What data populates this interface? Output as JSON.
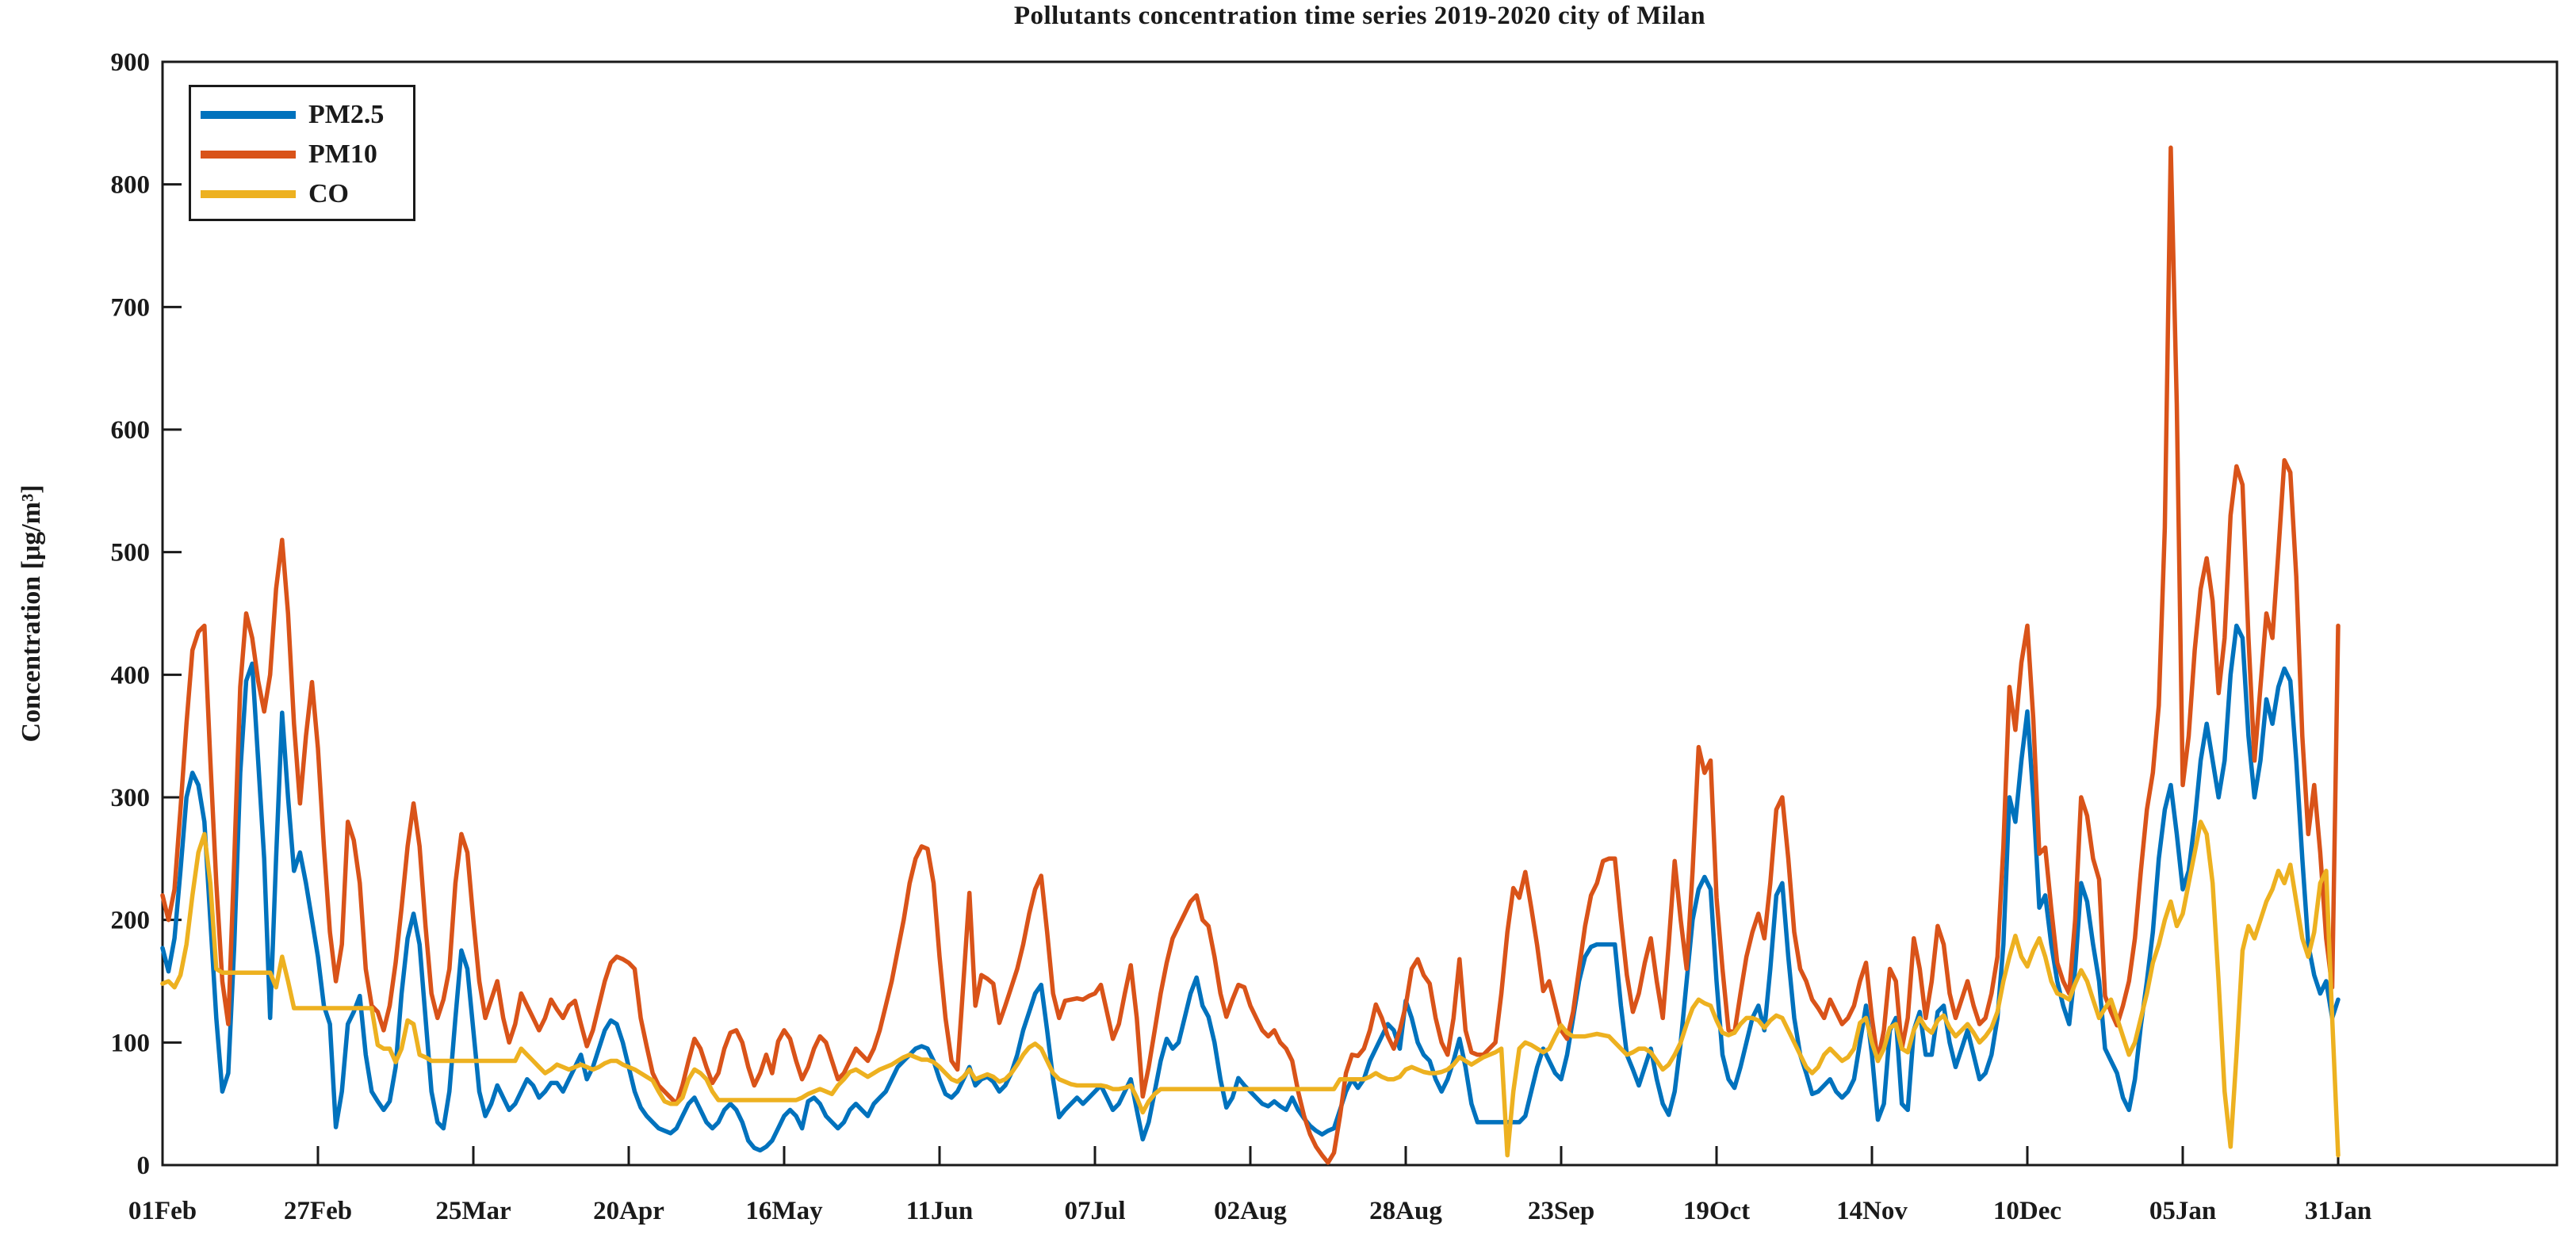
{
  "page": {
    "background": "#ffffff"
  },
  "chart_data": {
    "type": "line",
    "title": "Pollutants concentration time series 2019-2020 city of Milan",
    "xlabel": "",
    "ylabel": "Concentration [μg/m³]",
    "ylim": [
      0,
      900
    ],
    "y_ticks": [
      0,
      100,
      200,
      300,
      400,
      500,
      600,
      700,
      800,
      900
    ],
    "x_tick_labels": [
      "01Feb",
      "27Feb",
      "25Mar",
      "20Apr",
      "16May",
      "11Jun",
      "07Jul",
      "02Aug",
      "28Aug",
      "23Sep",
      "19Oct",
      "14Nov",
      "10Dec",
      "05Jan",
      "31Jan"
    ],
    "x_tick_days": [
      0,
      26,
      52,
      78,
      104,
      130,
      156,
      182,
      208,
      234,
      260,
      286,
      312,
      338,
      364
    ],
    "x_unit": "daily values, day 0 = 01 Feb 2019, day 364 = 31 Jan 2020",
    "grid": false,
    "legend_position": "top-left",
    "axis_color": "#1a1a1a",
    "series": [
      {
        "name": "PM2.5",
        "color": "#0072BD",
        "values": [
          177,
          158,
          185,
          240,
          300,
          320,
          310,
          280,
          200,
          120,
          60,
          75,
          180,
          320,
          395,
          409,
          330,
          250,
          120,
          250,
          369,
          300,
          240,
          255,
          230,
          200,
          170,
          130,
          115,
          31,
          60,
          115,
          125,
          138,
          90,
          60,
          52,
          45,
          52,
          80,
          140,
          185,
          205,
          180,
          120,
          60,
          35,
          30,
          60,
          120,
          175,
          160,
          110,
          60,
          40,
          50,
          65,
          55,
          45,
          50,
          60,
          70,
          65,
          55,
          60,
          67,
          67,
          60,
          70,
          80,
          90,
          70,
          80,
          95,
          110,
          118,
          115,
          100,
          80,
          60,
          47,
          40,
          35,
          30,
          28,
          26,
          30,
          40,
          50,
          55,
          45,
          35,
          30,
          35,
          45,
          50,
          45,
          35,
          20,
          14,
          12,
          15,
          20,
          30,
          40,
          45,
          40,
          30,
          52,
          55,
          50,
          40,
          35,
          30,
          35,
          45,
          50,
          45,
          40,
          50,
          55,
          60,
          70,
          80,
          85,
          90,
          95,
          97,
          95,
          85,
          70,
          58,
          55,
          60,
          70,
          80,
          65,
          70,
          72,
          68,
          60,
          65,
          75,
          90,
          110,
          125,
          140,
          147,
          110,
          70,
          39,
          45,
          50,
          55,
          50,
          55,
          60,
          65,
          55,
          45,
          50,
          60,
          70,
          45,
          21,
          35,
          60,
          85,
          103,
          95,
          100,
          120,
          140,
          153,
          130,
          121,
          100,
          70,
          47,
          55,
          71,
          65,
          60,
          55,
          50,
          48,
          52,
          48,
          45,
          55,
          45,
          38,
          32,
          28,
          25,
          28,
          30,
          45,
          60,
          70,
          63,
          70,
          85,
          95,
          105,
          115,
          110,
          95,
          134,
          120,
          100,
          90,
          85,
          70,
          60,
          70,
          85,
          103,
          80,
          50,
          35,
          35,
          35,
          35,
          35,
          35,
          35,
          35,
          40,
          60,
          80,
          95,
          85,
          75,
          70,
          90,
          120,
          150,
          170,
          178,
          180,
          180,
          180,
          180,
          130,
          90,
          78,
          65,
          80,
          95,
          70,
          50,
          41,
          60,
          100,
          150,
          200,
          225,
          235,
          225,
          150,
          90,
          70,
          63,
          80,
          100,
          120,
          130,
          110,
          160,
          220,
          230,
          170,
          120,
          90,
          75,
          58,
          60,
          65,
          70,
          60,
          55,
          60,
          70,
          100,
          130,
          90,
          37,
          50,
          110,
          120,
          50,
          45,
          110,
          125,
          90,
          90,
          125,
          130,
          100,
          80,
          95,
          110,
          90,
          70,
          75,
          90,
          120,
          180,
          300,
          280,
          330,
          370,
          300,
          210,
          220,
          180,
          150,
          130,
          115,
          160,
          230,
          215,
          180,
          150,
          95,
          85,
          75,
          55,
          45,
          70,
          114,
          150,
          190,
          250,
          290,
          310,
          270,
          225,
          240,
          280,
          330,
          360,
          330,
          300,
          330,
          400,
          440,
          430,
          350,
          300,
          330,
          380,
          360,
          390,
          405,
          395,
          330,
          250,
          180,
          155,
          140,
          150,
          120,
          135
        ]
      },
      {
        "name": "PM10",
        "color": "#D95319",
        "values": [
          220,
          200,
          225,
          290,
          360,
          420,
          435,
          440,
          330,
          230,
          150,
          115,
          250,
          390,
          450,
          430,
          395,
          370,
          400,
          470,
          510,
          450,
          360,
          295,
          350,
          394,
          340,
          260,
          190,
          150,
          180,
          280,
          265,
          230,
          160,
          130,
          125,
          110,
          130,
          165,
          210,
          260,
          295,
          260,
          195,
          140,
          120,
          135,
          160,
          230,
          270,
          255,
          200,
          150,
          120,
          135,
          150,
          120,
          100,
          115,
          140,
          130,
          120,
          110,
          120,
          135,
          127,
          120,
          130,
          134,
          115,
          97,
          110,
          130,
          150,
          165,
          170,
          168,
          165,
          160,
          120,
          97,
          75,
          65,
          60,
          55,
          50,
          65,
          85,
          103,
          95,
          80,
          67,
          75,
          95,
          108,
          110,
          100,
          80,
          65,
          75,
          90,
          75,
          101,
          110,
          103,
          85,
          70,
          80,
          95,
          105,
          100,
          85,
          70,
          75,
          85,
          95,
          90,
          85,
          95,
          110,
          130,
          150,
          175,
          200,
          230,
          250,
          260,
          258,
          230,
          170,
          120,
          85,
          78,
          150,
          222,
          130,
          155,
          152,
          148,
          116,
          130,
          145,
          160,
          180,
          205,
          225,
          236,
          190,
          140,
          120,
          134,
          135,
          136,
          135,
          138,
          140,
          147,
          125,
          103,
          115,
          140,
          163,
          120,
          56,
          80,
          110,
          140,
          165,
          185,
          195,
          205,
          215,
          220,
          200,
          195,
          170,
          140,
          121,
          135,
          147,
          145,
          130,
          120,
          110,
          105,
          110,
          100,
          95,
          85,
          60,
          40,
          25,
          15,
          8,
          2,
          10,
          40,
          75,
          90,
          89,
          95,
          110,
          131,
          120,
          105,
          95,
          110,
          130,
          160,
          168,
          155,
          148,
          120,
          100,
          90,
          120,
          168,
          110,
          92,
          90,
          90,
          95,
          100,
          140,
          190,
          226,
          218,
          239,
          210,
          179,
          142,
          150,
          130,
          110,
          103,
          125,
          160,
          195,
          220,
          230,
          248,
          250,
          250,
          200,
          155,
          125,
          140,
          165,
          185,
          150,
          120,
          180,
          248,
          200,
          160,
          240,
          341,
          320,
          330,
          218,
          160,
          110,
          108,
          140,
          170,
          190,
          205,
          185,
          230,
          290,
          300,
          250,
          190,
          160,
          150,
          135,
          128,
          120,
          135,
          125,
          115,
          120,
          130,
          150,
          165,
          120,
          85,
          110,
          160,
          150,
          95,
          120,
          185,
          160,
          120,
          150,
          195,
          180,
          140,
          120,
          135,
          150,
          130,
          115,
          120,
          140,
          170,
          260,
          390,
          355,
          410,
          440,
          364,
          254,
          259,
          209,
          165,
          150,
          140,
          200,
          300,
          285,
          250,
          233,
          138,
          125,
          114,
          130,
          150,
          185,
          240,
          290,
          320,
          375,
          520,
          830,
          620,
          310,
          350,
          420,
          470,
          495,
          460,
          385,
          430,
          530,
          570,
          555,
          430,
          330,
          390,
          450,
          430,
          500,
          575,
          565,
          480,
          350,
          270,
          310,
          255,
          185,
          145,
          440
        ]
      },
      {
        "name": "CO",
        "color": "#EDB120",
        "values": [
          148,
          150,
          145,
          155,
          180,
          220,
          255,
          270,
          230,
          160,
          157,
          157,
          157,
          157,
          157,
          157,
          157,
          157,
          157,
          145,
          170,
          150,
          128,
          128,
          128,
          128,
          128,
          128,
          128,
          128,
          128,
          128,
          128,
          128,
          128,
          128,
          98,
          95,
          95,
          84,
          95,
          118,
          115,
          90,
          88,
          85,
          85,
          85,
          85,
          85,
          85,
          85,
          85,
          85,
          85,
          85,
          85,
          85,
          85,
          85,
          95,
          90,
          85,
          80,
          75,
          78,
          82,
          80,
          78,
          80,
          82,
          80,
          78,
          80,
          83,
          85,
          85,
          82,
          80,
          78,
          75,
          72,
          69,
          60,
          52,
          50,
          50,
          55,
          70,
          78,
          75,
          70,
          60,
          53,
          53,
          53,
          53,
          53,
          53,
          53,
          53,
          53,
          53,
          53,
          53,
          53,
          53,
          55,
          58,
          60,
          62,
          60,
          58,
          65,
          70,
          76,
          78,
          75,
          72,
          75,
          78,
          80,
          82,
          85,
          88,
          90,
          88,
          86,
          86,
          84,
          80,
          75,
          70,
          68,
          72,
          78,
          70,
          72,
          74,
          72,
          68,
          70,
          75,
          82,
          90,
          96,
          99,
          95,
          85,
          75,
          70,
          68,
          66,
          65,
          65,
          65,
          65,
          65,
          64,
          62,
          62,
          63,
          65,
          55,
          43,
          52,
          58,
          62,
          62,
          62,
          62,
          62,
          62,
          62,
          62,
          62,
          62,
          62,
          62,
          62,
          62,
          62,
          62,
          62,
          62,
          62,
          62,
          62,
          62,
          62,
          62,
          62,
          62,
          62,
          62,
          62,
          62,
          70,
          70,
          70,
          70,
          70,
          72,
          75,
          72,
          70,
          70,
          72,
          78,
          80,
          78,
          76,
          75,
          75,
          76,
          78,
          82,
          88,
          85,
          82,
          85,
          88,
          90,
          92,
          95,
          8,
          60,
          95,
          100,
          98,
          95,
          92,
          95,
          105,
          114,
          108,
          105,
          105,
          105,
          106,
          107,
          106,
          105,
          100,
          95,
          90,
          92,
          95,
          95,
          92,
          85,
          78,
          82,
          90,
          100,
          115,
          128,
          135,
          132,
          130,
          118,
          108,
          106,
          108,
          115,
          120,
          120,
          118,
          112,
          118,
          122,
          120,
          110,
          100,
          90,
          80,
          75,
          80,
          90,
          95,
          90,
          85,
          88,
          95,
          116,
          120,
          100,
          85,
          95,
          112,
          115,
          95,
          92,
          110,
          120,
          112,
          108,
          118,
          122,
          112,
          105,
          110,
          115,
          108,
          100,
          105,
          112,
          125,
          150,
          170,
          187,
          170,
          162,
          175,
          185,
          170,
          150,
          140,
          138,
          135,
          148,
          159,
          150,
          135,
          120,
          128,
          135,
          120,
          105,
          90,
          100,
          120,
          140,
          165,
          180,
          200,
          215,
          195,
          205,
          230,
          255,
          280,
          270,
          230,
          150,
          60,
          15,
          90,
          175,
          195,
          185,
          200,
          215,
          225,
          240,
          230,
          245,
          215,
          185,
          170,
          190,
          230,
          240,
          120,
          8
        ]
      }
    ]
  }
}
